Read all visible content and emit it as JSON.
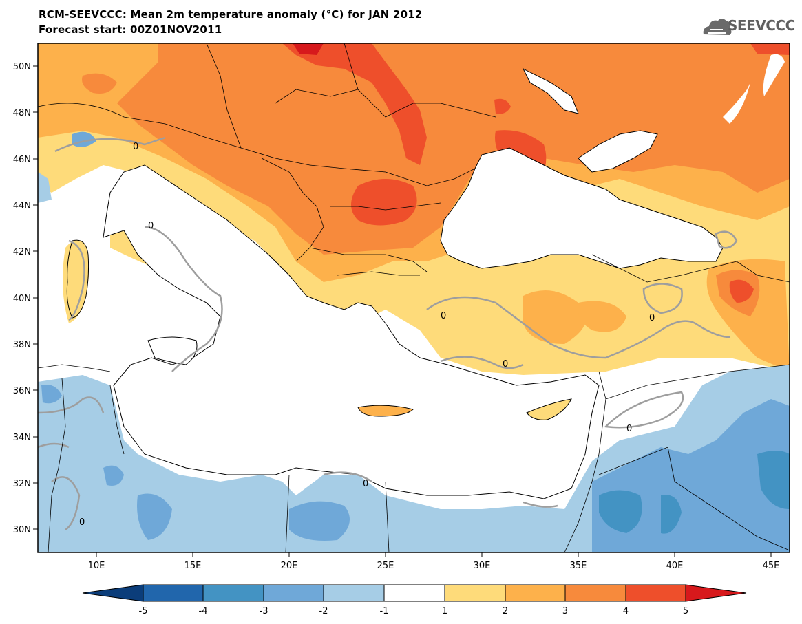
{
  "header": {
    "title": "RCM-SEEVCCC: Mean 2m temperature anomaly (°C) for JAN 2012",
    "subtitle": "Forecast start: 00Z01NOV2011"
  },
  "logo": {
    "text": "SEEVCCC",
    "icon": "cloud-icon"
  },
  "map": {
    "lat_labels": [
      "50N",
      "48N",
      "46N",
      "44N",
      "42N",
      "40N",
      "38N",
      "36N",
      "34N",
      "32N",
      "30N"
    ],
    "lon_labels": [
      "10E",
      "15E",
      "20E",
      "25E",
      "30E",
      "35E",
      "40E",
      "45E"
    ],
    "contour_label": "0"
  },
  "colorbar": {
    "ticks": [
      "-5",
      "-4",
      "-3",
      "-2",
      "-1",
      "1",
      "2",
      "3",
      "4",
      "5"
    ],
    "colors": [
      "#0b3d7a",
      "#2166ac",
      "#4393c3",
      "#6fa8d8",
      "#a6cde6",
      "#ffffff",
      "#fedb7a",
      "#fdb14b",
      "#f78a3c",
      "#ee4f2b",
      "#d7191c"
    ]
  },
  "colors": {
    "anom_1_2": "#fedb7a",
    "anom_2_3": "#fdb14b",
    "anom_3_4": "#f78a3c",
    "anom_4_5": "#ee4f2b",
    "anom_gt5": "#d7191c",
    "anom_m1_m2": "#a6cde6",
    "anom_m2_m3": "#6fa8d8",
    "anom_m3_m4": "#4393c3",
    "zero_contour": "#9e9e9e"
  }
}
